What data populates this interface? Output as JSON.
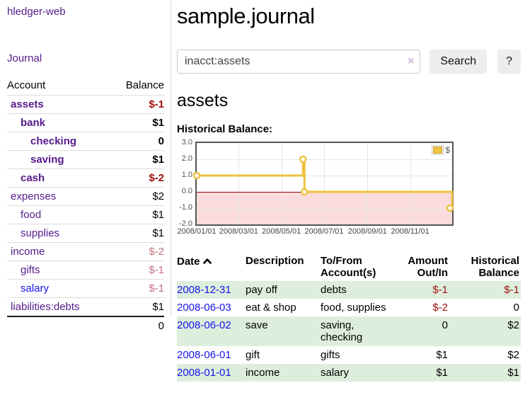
{
  "app": {
    "brand": "hledger-web",
    "nav": {
      "journal": "Journal"
    }
  },
  "sidebar": {
    "header": {
      "account": "Account",
      "balance": "Balance"
    },
    "accounts": [
      {
        "name": "assets",
        "indent": 1,
        "bold": true,
        "balance": "$-1",
        "balance_style": "neg-strong",
        "link": "purple"
      },
      {
        "name": "bank",
        "indent": 2,
        "bold": true,
        "balance": "$1",
        "balance_style": "pos",
        "link": "purple"
      },
      {
        "name": "checking",
        "indent": 3,
        "bold": true,
        "balance": "0",
        "balance_style": "pos",
        "link": "purple"
      },
      {
        "name": "saving",
        "indent": 3,
        "bold": true,
        "balance": "$1",
        "balance_style": "pos",
        "link": "purple"
      },
      {
        "name": "cash",
        "indent": 2,
        "bold": true,
        "balance": "$-2",
        "balance_style": "neg-strong",
        "link": "purple"
      },
      {
        "name": "expenses",
        "indent": 1,
        "bold": false,
        "balance": "$2",
        "balance_style": "pos",
        "link": "purple"
      },
      {
        "name": "food",
        "indent": 2,
        "bold": false,
        "balance": "$1",
        "balance_style": "pos",
        "link": "purple"
      },
      {
        "name": "supplies",
        "indent": 2,
        "bold": false,
        "balance": "$1",
        "balance_style": "pos",
        "link": "purple"
      },
      {
        "name": "income",
        "indent": 1,
        "bold": false,
        "balance": "$-2",
        "balance_style": "neg-faint",
        "link": "purple"
      },
      {
        "name": "gifts",
        "indent": 2,
        "bold": false,
        "balance": "$-1",
        "balance_style": "neg-faint",
        "link": "purple"
      },
      {
        "name": "salary",
        "indent": 2,
        "bold": false,
        "balance": "$-1",
        "balance_style": "neg-faint",
        "link": "blue"
      },
      {
        "name": "liabilities:debts",
        "indent": 1,
        "bold": false,
        "balance": "$1",
        "balance_style": "pos",
        "link": "purple"
      }
    ],
    "total": "0"
  },
  "header": {
    "title": "sample.journal"
  },
  "search": {
    "value": "inacct:assets",
    "clear_icon": "×",
    "button": "Search",
    "help_button": "?"
  },
  "account_page": {
    "title": "assets",
    "chart_label": "Historical Balance:"
  },
  "chart_data": {
    "type": "line",
    "step": true,
    "title": "Historical Balance",
    "series": [
      {
        "name": "$",
        "color": "#edc240",
        "points": [
          [
            "2008-01-01",
            1
          ],
          [
            "2008-06-01",
            2
          ],
          [
            "2008-06-03",
            0
          ],
          [
            "2008-12-31",
            -1
          ]
        ]
      }
    ],
    "x_range": [
      "2008-01-01",
      "2008-12-31"
    ],
    "ylim": [
      -2,
      3
    ],
    "yticks": [
      "3.0",
      "2.0",
      "1.0",
      "0.0",
      "-1.0",
      "-2.0"
    ],
    "xticks": [
      "2008/01/01",
      "2008/03/01",
      "2008/05/01",
      "2008/07/01",
      "2008/09/01",
      "2008/11/01"
    ],
    "legend": {
      "label": "$",
      "position": "top-right"
    },
    "grid": true,
    "negative_region_fill": "#fbdcdc",
    "zero_line_color": "#8b0000"
  },
  "register": {
    "headers": {
      "date": "Date",
      "description": "Description",
      "accounts": "To/From Account(s)",
      "amount": "Amount Out/In",
      "balance": "Historical Balance"
    },
    "sort": {
      "column": "date",
      "direction": "asc"
    },
    "rows": [
      {
        "date": "2008-12-31",
        "description": "pay off",
        "accounts": "debts",
        "amount": "$-1",
        "amount_neg": true,
        "balance": "$-1",
        "balance_neg": true
      },
      {
        "date": "2008-06-03",
        "description": "eat & shop",
        "accounts": "food, supplies",
        "amount": "$-2",
        "amount_neg": true,
        "balance": "0",
        "balance_neg": false
      },
      {
        "date": "2008-06-02",
        "description": "save",
        "accounts": "saving, checking",
        "amount": "0",
        "amount_neg": false,
        "balance": "$2",
        "balance_neg": false
      },
      {
        "date": "2008-06-01",
        "description": "gift",
        "accounts": "gifts",
        "amount": "$1",
        "amount_neg": false,
        "balance": "$2",
        "balance_neg": false
      },
      {
        "date": "2008-01-01",
        "description": "income",
        "accounts": "salary",
        "amount": "$1",
        "amount_neg": false,
        "balance": "$1",
        "balance_neg": false
      }
    ]
  },
  "colors": {
    "link_purple": "#551a8b",
    "link_blue": "#1414ee",
    "negative_strong": "#a01010",
    "negative_faint": "#c4717e",
    "row_stripe_green": "#ddeedd",
    "series_gold": "#edc240",
    "negative_region_pink": "#fbdcdc",
    "zero_line": "#8b0000",
    "chart_border": "#545454",
    "gridline": "#e6e6e6",
    "separator": "#dddddd",
    "button_bg": "#ededed",
    "input_border": "#cccccc",
    "clear_icon": "#c8b6da"
  }
}
